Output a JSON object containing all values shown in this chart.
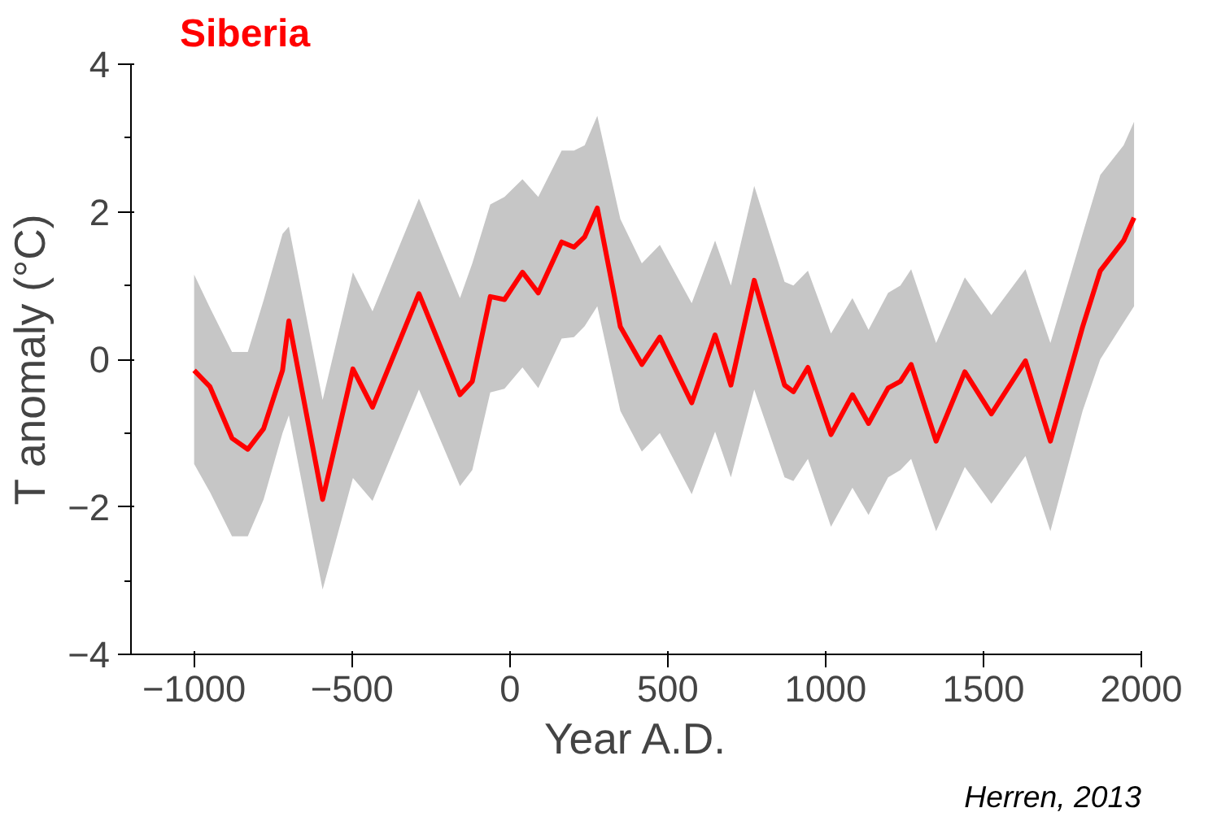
{
  "chart_data": {
    "type": "line",
    "title": "Siberia",
    "xlabel": "Year A.D.",
    "ylabel": "T anomaly (°C)",
    "xlim": [
      -1200,
      2000
    ],
    "xticks": [
      -1000,
      -500,
      0,
      500,
      1000,
      1500,
      2000
    ],
    "ylim": [
      -4,
      4
    ],
    "yticks": [
      -4,
      -2,
      0,
      2,
      4
    ],
    "grid": false,
    "marker": "none",
    "line_style": "solid",
    "annotations": [
      "Herren, 2013"
    ],
    "series": [
      {
        "color": "#ff0000",
        "x": [
          -1000,
          -950,
          -880,
          -830,
          -780,
          -720,
          -700,
          -593,
          -497,
          -435,
          -288,
          -158,
          -119,
          -62,
          -17,
          40,
          90,
          164,
          203,
          237,
          277,
          350,
          418,
          475,
          576,
          650,
          700,
          774,
          870,
          898,
          944,
          1017,
          1085,
          1136,
          1198,
          1237,
          1271,
          1350,
          1441,
          1525,
          1633,
          1712,
          1814,
          1870,
          1944,
          1977
        ],
        "values": [
          -0.15,
          -0.37,
          -1.07,
          -1.22,
          -0.94,
          -0.15,
          0.52,
          -1.9,
          -0.13,
          -0.65,
          0.89,
          -0.48,
          -0.3,
          0.85,
          0.81,
          1.18,
          0.9,
          1.59,
          1.52,
          1.66,
          2.05,
          0.44,
          -0.07,
          0.3,
          -0.59,
          0.33,
          -0.35,
          1.07,
          -0.35,
          -0.44,
          -0.11,
          -1.02,
          -0.48,
          -0.87,
          -0.39,
          -0.3,
          -0.07,
          -1.11,
          -0.17,
          -0.74,
          -0.02,
          -1.11,
          0.44,
          1.2,
          1.61,
          1.92
        ],
        "upper": [
          1.15,
          0.7,
          0.1,
          0.1,
          0.8,
          1.7,
          1.8,
          -0.55,
          1.18,
          0.65,
          2.18,
          0.83,
          1.3,
          2.1,
          2.2,
          2.44,
          2.2,
          2.83,
          2.83,
          2.9,
          3.3,
          1.9,
          1.3,
          1.55,
          0.76,
          1.61,
          1.0,
          2.35,
          1.05,
          1.0,
          1.2,
          0.35,
          0.83,
          0.4,
          0.9,
          1.0,
          1.22,
          0.22,
          1.11,
          0.6,
          1.22,
          0.22,
          1.7,
          2.5,
          2.9,
          3.22
        ],
        "lower": [
          -1.42,
          -1.8,
          -2.4,
          -2.4,
          -1.9,
          -1.0,
          -0.76,
          -3.12,
          -1.61,
          -1.92,
          -0.41,
          -1.72,
          -1.5,
          -0.45,
          -0.4,
          -0.11,
          -0.39,
          0.28,
          0.3,
          0.45,
          0.72,
          -0.7,
          -1.25,
          -1.0,
          -1.83,
          -0.98,
          -1.6,
          -0.41,
          -1.6,
          -1.65,
          -1.35,
          -2.27,
          -1.74,
          -2.11,
          -1.6,
          -1.5,
          -1.35,
          -2.33,
          -1.46,
          -1.96,
          -1.31,
          -2.33,
          -0.7,
          0.0,
          0.5,
          0.72
        ]
      }
    ]
  }
}
